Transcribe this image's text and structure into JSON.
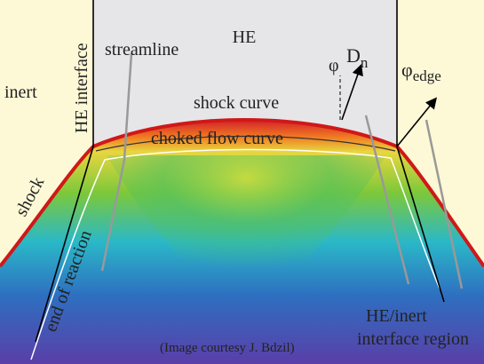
{
  "labels": {
    "he": "HE",
    "inert": "inert",
    "he_interface": "HE interface",
    "streamline": "streamline",
    "shock_curve": "shock curve",
    "choked_flow_curve": "choked flow curve",
    "shock": "shock",
    "end_of_reaction": "end of reaction",
    "phi": "φ",
    "d_n": {
      "base": "D",
      "sub": "n"
    },
    "phi_edge": {
      "base": "φ",
      "sub": "edge"
    },
    "he_inert_1": "HE/inert",
    "he_inert_2": "interface region",
    "credit": "(Image courtesy J. Bdzil)"
  }
}
